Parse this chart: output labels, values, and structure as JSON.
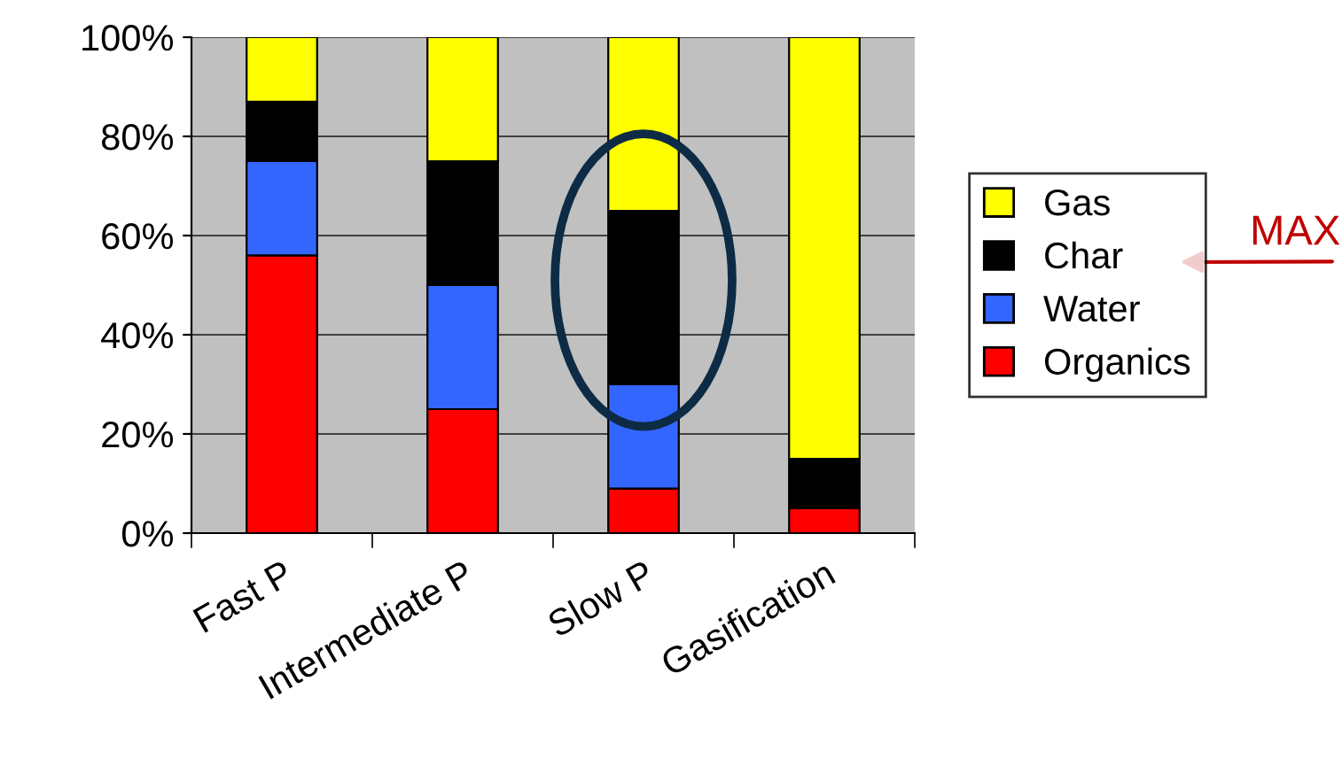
{
  "chart_data": {
    "type": "bar",
    "stacked": true,
    "categories": [
      "Fast P",
      "Intermediate P",
      "Slow P",
      "Gasification"
    ],
    "series": [
      {
        "name": "Organics",
        "color": "#ff0000",
        "values": [
          56,
          25,
          9,
          5
        ]
      },
      {
        "name": "Water",
        "color": "#3366ff",
        "values": [
          19,
          25,
          21,
          0
        ]
      },
      {
        "name": "Char",
        "color": "#000000",
        "values": [
          12,
          25,
          35,
          10
        ]
      },
      {
        "name": "Gas",
        "color": "#ffff00",
        "values": [
          13,
          25,
          35,
          85
        ]
      }
    ],
    "ylim": [
      0,
      100
    ],
    "yticks": [
      {
        "value": 0,
        "label": "0%"
      },
      {
        "value": 20,
        "label": "20%"
      },
      {
        "value": 40,
        "label": "40%"
      },
      {
        "value": 60,
        "label": "60%"
      },
      {
        "value": 80,
        "label": "80%"
      },
      {
        "value": 100,
        "label": "100%"
      }
    ],
    "grid": "y",
    "legend": "right",
    "annotations": [
      "MAX"
    ]
  }
}
